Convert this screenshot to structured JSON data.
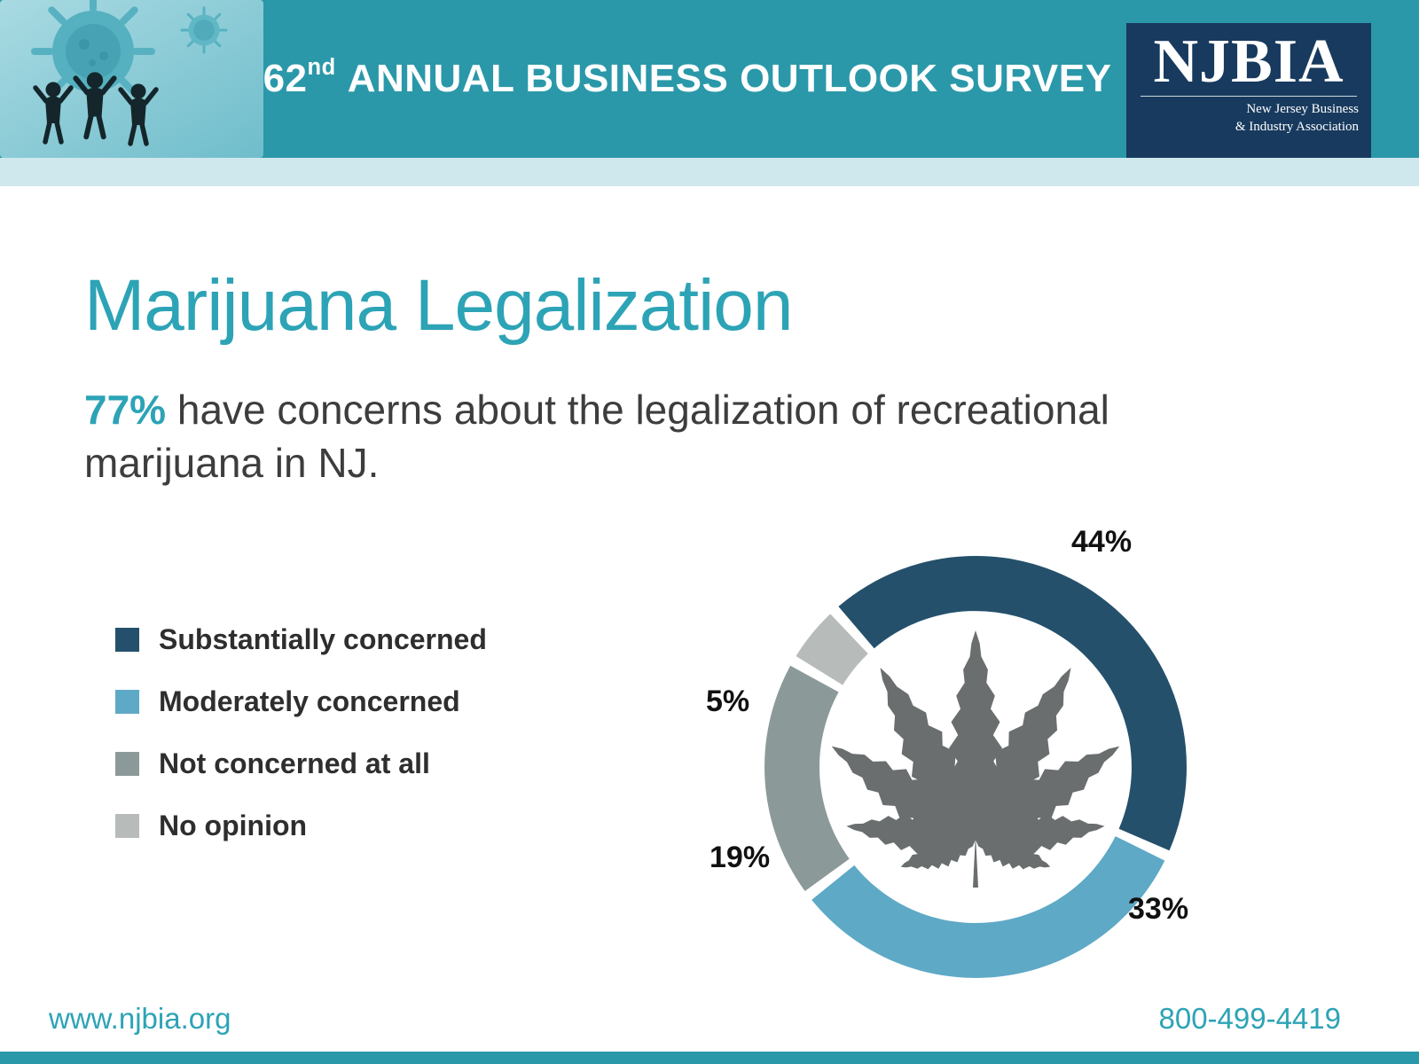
{
  "theme": {
    "teal": "#2a98a9",
    "light_teal": "#cfe8ee",
    "navy": "#183a5e",
    "accent": "#2da3b6"
  },
  "header": {
    "survey_number": "62",
    "survey_number_suffix": "nd",
    "survey_title": "ANNUAL BUSINESS OUTLOOK SURVEY",
    "logo": {
      "acronym": "NJBIA",
      "subtitle_line1": "New Jersey Business",
      "subtitle_line2": "& Industry Association"
    }
  },
  "slide": {
    "title": "Marijuana Legalization",
    "stat_highlight": "77%",
    "statement": " have concerns about the legalization of recreational marijuana in NJ."
  },
  "chart_data": {
    "type": "pie",
    "donut": true,
    "categories": [
      "Substantially concerned",
      "Moderately concerned",
      "Not concerned at all",
      "No opinion"
    ],
    "values": [
      44,
      33,
      19,
      5
    ],
    "unit": "%",
    "value_labels": [
      "44%",
      "33%",
      "19%",
      "5%"
    ],
    "colors": [
      "#24506b",
      "#5ea9c6",
      "#8b9a99",
      "#b7bcbb"
    ],
    "start_angle_deg": 318,
    "legend_position": "left",
    "center_icon": "marijuana-leaf"
  },
  "footer": {
    "website": "www.njbia.org",
    "phone": "800-499-4419"
  }
}
